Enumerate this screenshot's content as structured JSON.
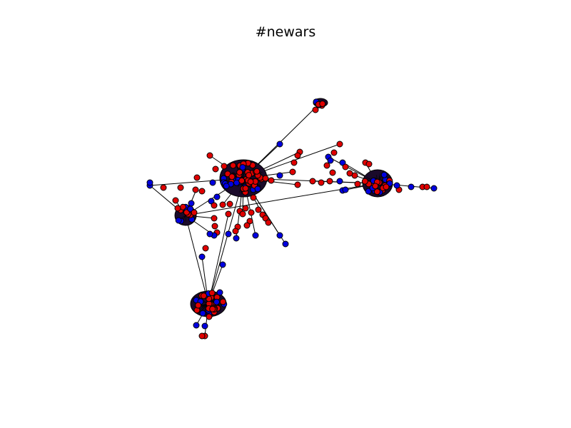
{
  "figure": {
    "title": "#newars"
  },
  "legend": [],
  "colors": {
    "node_group_a": "#e00000",
    "node_group_b": "#0000e0",
    "edge": "#000000",
    "node_stroke": "#000000",
    "background": "#ffffff"
  }
}
